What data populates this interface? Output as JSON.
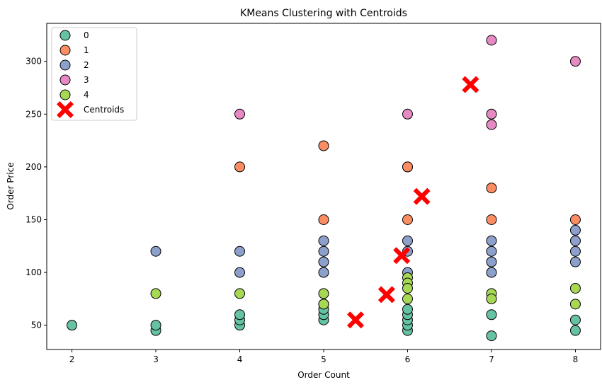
{
  "chart_data": {
    "type": "scatter",
    "title": "KMeans Clustering with Centroids",
    "xlabel": "Order Count",
    "ylabel": "Order Price",
    "xlim": [
      1.7,
      8.3
    ],
    "ylim": [
      27,
      336
    ],
    "xticks": [
      2,
      3,
      4,
      5,
      6,
      7,
      8
    ],
    "yticks": [
      50,
      100,
      150,
      200,
      250,
      300
    ],
    "grid": false,
    "legend_position": "top-left",
    "series": [
      {
        "name": "0",
        "color": "#66c2a5",
        "x": [
          2,
          3,
          3,
          4,
          4,
          4,
          5,
          5,
          5,
          5,
          6,
          6,
          6,
          6,
          6,
          7,
          7,
          8,
          8
        ],
        "y": [
          50,
          45,
          50,
          50,
          55,
          60,
          55,
          60,
          65,
          70,
          45,
          50,
          55,
          60,
          65,
          40,
          60,
          45,
          55
        ]
      },
      {
        "name": "1",
        "color": "#fc8d62",
        "x": [
          4,
          5,
          5,
          6,
          6,
          6,
          7,
          7,
          8
        ],
        "y": [
          200,
          220,
          150,
          200,
          200,
          150,
          180,
          150,
          150
        ]
      },
      {
        "name": "2",
        "color": "#8da0cb",
        "x": [
          3,
          4,
          4,
          5,
          5,
          5,
          5,
          6,
          6,
          6,
          7,
          7,
          7,
          7,
          8,
          8,
          8,
          8
        ],
        "y": [
          120,
          120,
          100,
          130,
          120,
          110,
          100,
          130,
          120,
          100,
          130,
          120,
          110,
          100,
          140,
          130,
          120,
          110
        ]
      },
      {
        "name": "3",
        "color": "#e78ac3",
        "x": [
          4,
          6,
          7,
          7,
          7,
          8
        ],
        "y": [
          250,
          250,
          320,
          250,
          240,
          300
        ]
      },
      {
        "name": "4",
        "color": "#a6d854",
        "x": [
          3,
          4,
          5,
          5,
          6,
          6,
          6,
          6,
          7,
          7,
          8,
          8
        ],
        "y": [
          80,
          80,
          80,
          70,
          95,
          90,
          85,
          75,
          80,
          75,
          85,
          70
        ]
      },
      {
        "name": "Centroids",
        "color": "#ff0000",
        "marker": "X",
        "x": [
          5.38,
          5.75,
          5.93,
          6.17,
          6.75
        ],
        "y": [
          55,
          79,
          116,
          172,
          278
        ]
      }
    ]
  }
}
